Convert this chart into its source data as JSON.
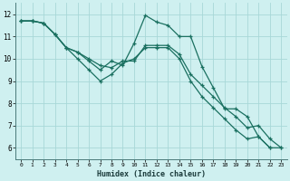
{
  "xlabel": "Humidex (Indice chaleur)",
  "bg_color": "#cff0f0",
  "grid_color": "#a8d8d8",
  "line_color": "#1a7060",
  "xlim": [
    -0.5,
    23.5
  ],
  "ylim": [
    5.5,
    12.5
  ],
  "yticks": [
    6,
    7,
    8,
    9,
    10,
    11,
    12
  ],
  "xticks": [
    0,
    1,
    2,
    3,
    4,
    5,
    6,
    7,
    8,
    9,
    10,
    11,
    12,
    13,
    14,
    15,
    16,
    17,
    18,
    19,
    20,
    21,
    22,
    23
  ],
  "series": [
    [
      11.7,
      11.7,
      11.6,
      11.1,
      10.5,
      10.3,
      9.9,
      9.5,
      9.9,
      9.7,
      10.7,
      11.95,
      11.65,
      11.5,
      11.0,
      11.0,
      9.65,
      8.7,
      7.75,
      7.75,
      7.4,
      6.5,
      6.0,
      null
    ],
    [
      11.7,
      11.7,
      11.6,
      11.1,
      10.5,
      10.3,
      10.0,
      9.7,
      9.6,
      9.9,
      9.9,
      10.6,
      10.6,
      10.6,
      10.2,
      9.3,
      8.8,
      8.3,
      7.8,
      7.4,
      6.9,
      7.0,
      6.4,
      6.0
    ],
    [
      11.7,
      11.7,
      11.6,
      11.1,
      10.5,
      10.0,
      9.5,
      9.0,
      9.3,
      9.8,
      10.0,
      10.5,
      10.5,
      10.5,
      10.0,
      9.0,
      8.3,
      7.8,
      7.3,
      6.8,
      6.4,
      6.5,
      6.0,
      6.0
    ]
  ]
}
